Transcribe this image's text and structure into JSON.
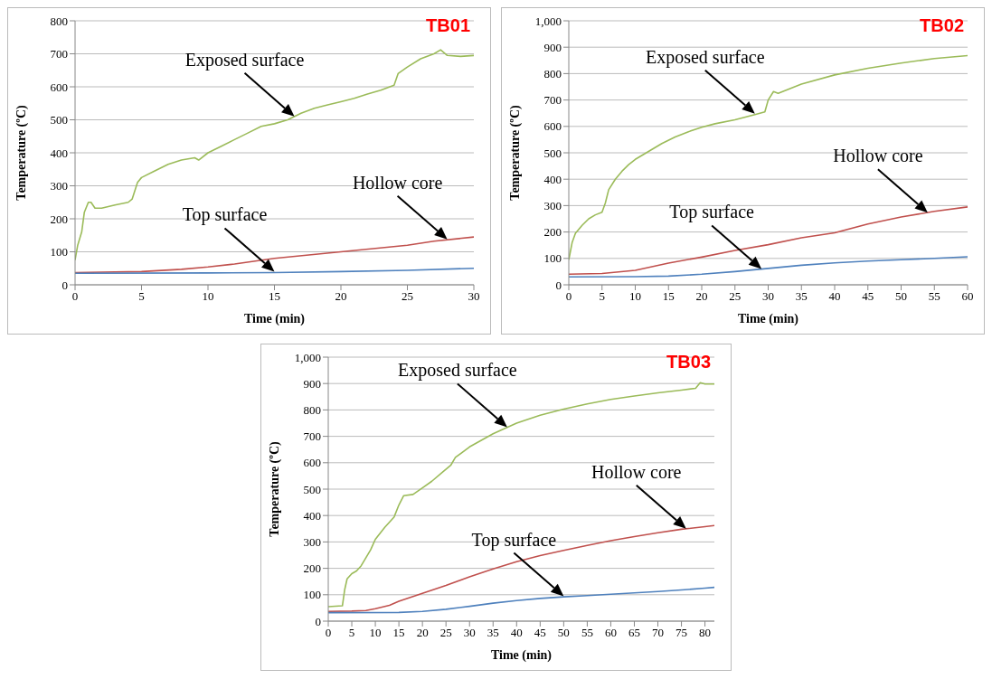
{
  "chart_data": [
    {
      "type": "line",
      "title": "TB01",
      "xlabel": "Time (min)",
      "ylabel": "Temperature (ºC)",
      "xlim": [
        0,
        30
      ],
      "xticks": [
        0,
        5,
        10,
        15,
        20,
        25,
        30
      ],
      "ylim": [
        0,
        800
      ],
      "yticks": [
        0,
        100,
        200,
        300,
        400,
        500,
        600,
        700,
        800
      ],
      "grid": "y",
      "marker": "none",
      "line_style": "solid",
      "legend": false,
      "series": [
        {
          "color": "#9bbb59",
          "x": [
            0,
            0.2,
            0.5,
            0.7,
            1,
            1.2,
            1.5,
            2,
            3,
            4,
            4.3,
            4.7,
            5,
            6,
            7,
            8,
            9,
            9.3,
            10,
            11,
            12,
            13,
            14,
            15,
            16,
            17,
            18,
            19,
            20,
            21,
            22,
            23,
            24,
            24.3,
            25,
            26,
            27,
            27.5,
            28,
            29,
            30
          ],
          "values": [
            75,
            120,
            160,
            220,
            250,
            250,
            232,
            232,
            242,
            250,
            260,
            310,
            325,
            345,
            365,
            378,
            385,
            378,
            400,
            420,
            440,
            460,
            480,
            488,
            500,
            520,
            535,
            545,
            555,
            565,
            578,
            590,
            605,
            640,
            660,
            685,
            700,
            712,
            695,
            692,
            695
          ]
        },
        {
          "color": "#c0504d",
          "x": [
            0,
            5,
            8,
            10,
            12,
            15,
            20,
            25,
            27,
            30
          ],
          "values": [
            37,
            40,
            47,
            54,
            63,
            80,
            100,
            120,
            132,
            145
          ]
        },
        {
          "color": "#4f81bd",
          "x": [
            0,
            10,
            15,
            20,
            25,
            30
          ],
          "values": [
            35,
            36,
            37,
            40,
            44,
            50
          ]
        }
      ],
      "annotations": [
        {
          "text": "Exposed surface",
          "x": 16.5,
          "y": 510
        },
        {
          "text": "Hollow core",
          "x": 28,
          "y": 138
        },
        {
          "text": "Top surface",
          "x": 15,
          "y": 40
        }
      ]
    },
    {
      "type": "line",
      "title": "TB02",
      "xlabel": "Time (min)",
      "ylabel": "Temperature (ºC)",
      "xlim": [
        0,
        60
      ],
      "xticks": [
        0,
        5,
        10,
        15,
        20,
        25,
        30,
        35,
        40,
        45,
        50,
        55,
        60
      ],
      "ylim": [
        0,
        1000
      ],
      "yticks": [
        0,
        100,
        200,
        300,
        400,
        500,
        600,
        700,
        800,
        900,
        {
          "value": 1000,
          "label": "1,000"
        }
      ],
      "grid": "y",
      "marker": "none",
      "line_style": "solid",
      "legend": false,
      "series": [
        {
          "color": "#9bbb59",
          "x": [
            0,
            0.5,
            1,
            2,
            3,
            4,
            5,
            5.5,
            6,
            7,
            8,
            9,
            10,
            12,
            14,
            16,
            18,
            20,
            22,
            25,
            28,
            29.5,
            30,
            30.8,
            31.5,
            35,
            40,
            45,
            50,
            55,
            60
          ],
          "values": [
            95,
            160,
            195,
            225,
            250,
            265,
            275,
            310,
            360,
            400,
            430,
            455,
            475,
            505,
            535,
            560,
            580,
            597,
            610,
            625,
            645,
            655,
            700,
            732,
            725,
            760,
            795,
            820,
            840,
            857,
            868
          ]
        },
        {
          "color": "#c0504d",
          "x": [
            0,
            5,
            10,
            15,
            20,
            25,
            30,
            35,
            40,
            45,
            50,
            55,
            60
          ],
          "values": [
            40,
            43,
            55,
            82,
            105,
            130,
            152,
            178,
            197,
            230,
            257,
            278,
            295
          ]
        },
        {
          "color": "#4f81bd",
          "x": [
            0,
            10,
            15,
            20,
            25,
            30,
            35,
            40,
            45,
            50,
            55,
            60
          ],
          "values": [
            30,
            31,
            33,
            40,
            50,
            62,
            74,
            83,
            90,
            95,
            100,
            106
          ]
        }
      ],
      "annotations": [
        {
          "text": "Exposed surface",
          "x": 28,
          "y": 648
        },
        {
          "text": "Hollow core",
          "x": 54,
          "y": 273
        },
        {
          "text": "Top surface",
          "x": 29,
          "y": 60
        }
      ]
    },
    {
      "type": "line",
      "title": "TB03",
      "xlabel": "Time (min)",
      "ylabel": "Temperature (ºC)",
      "xlim": [
        0,
        82
      ],
      "xticks": [
        0,
        5,
        10,
        15,
        20,
        25,
        30,
        35,
        40,
        45,
        50,
        55,
        60,
        65,
        70,
        75,
        80
      ],
      "ylim": [
        0,
        1000
      ],
      "yticks": [
        0,
        100,
        200,
        300,
        400,
        500,
        600,
        700,
        800,
        900,
        {
          "value": 1000,
          "label": "1,000"
        }
      ],
      "grid": "y",
      "marker": "none",
      "line_style": "solid",
      "legend": false,
      "series": [
        {
          "color": "#9bbb59",
          "x": [
            0,
            3,
            3.5,
            4,
            5,
            6,
            7,
            8,
            9,
            10,
            12,
            14,
            15,
            16,
            18,
            20,
            22,
            24,
            26,
            27,
            30,
            35,
            40,
            45,
            50,
            55,
            60,
            65,
            70,
            75,
            78,
            79,
            80,
            82
          ],
          "values": [
            55,
            58,
            120,
            160,
            180,
            190,
            210,
            240,
            270,
            310,
            355,
            395,
            440,
            475,
            480,
            505,
            530,
            560,
            590,
            620,
            660,
            710,
            750,
            780,
            803,
            823,
            840,
            853,
            865,
            875,
            882,
            903,
            898,
            898
          ]
        },
        {
          "color": "#c0504d",
          "x": [
            0,
            5,
            8,
            10,
            13,
            15,
            20,
            25,
            30,
            35,
            40,
            45,
            50,
            55,
            60,
            65,
            70,
            75,
            80,
            82
          ],
          "values": [
            37,
            38,
            40,
            47,
            60,
            75,
            105,
            135,
            168,
            198,
            225,
            248,
            268,
            287,
            305,
            320,
            335,
            348,
            358,
            362
          ]
        },
        {
          "color": "#4f81bd",
          "x": [
            0,
            15,
            20,
            25,
            30,
            35,
            40,
            45,
            50,
            55,
            60,
            65,
            70,
            75,
            80,
            82
          ],
          "values": [
            32,
            33,
            37,
            45,
            56,
            68,
            78,
            86,
            92,
            97,
            102,
            107,
            112,
            118,
            125,
            128
          ]
        }
      ],
      "annotations": [
        {
          "text": "Exposed surface",
          "x": 38,
          "y": 735
        },
        {
          "text": "Hollow core",
          "x": 76,
          "y": 350
        },
        {
          "text": "Top surface",
          "x": 50,
          "y": 94
        }
      ]
    }
  ]
}
